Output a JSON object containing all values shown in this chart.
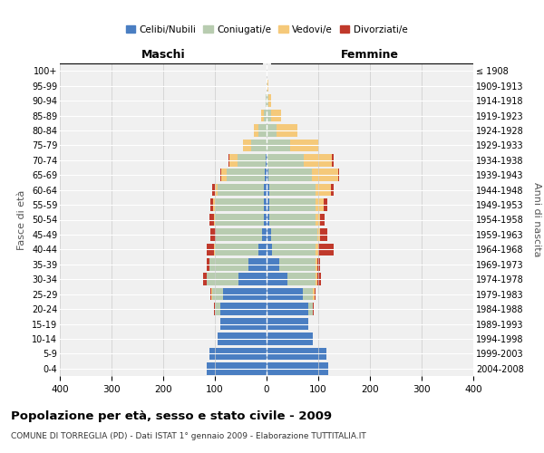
{
  "age_groups": [
    "0-4",
    "5-9",
    "10-14",
    "15-19",
    "20-24",
    "25-29",
    "30-34",
    "35-39",
    "40-44",
    "45-49",
    "50-54",
    "55-59",
    "60-64",
    "65-69",
    "70-74",
    "75-79",
    "80-84",
    "85-89",
    "90-94",
    "95-99",
    "100+"
  ],
  "birth_years": [
    "2004-2008",
    "1999-2003",
    "1994-1998",
    "1989-1993",
    "1984-1988",
    "1979-1983",
    "1974-1978",
    "1969-1973",
    "1964-1968",
    "1959-1963",
    "1954-1958",
    "1949-1953",
    "1944-1948",
    "1939-1943",
    "1934-1938",
    "1929-1933",
    "1924-1928",
    "1919-1923",
    "1914-1918",
    "1909-1913",
    "≤ 1908"
  ],
  "male": {
    "celibi": [
      115,
      110,
      95,
      90,
      90,
      85,
      55,
      35,
      15,
      8,
      5,
      5,
      5,
      3,
      2,
      0,
      0,
      0,
      0,
      0,
      0
    ],
    "coniugati": [
      0,
      0,
      0,
      0,
      10,
      20,
      60,
      75,
      85,
      90,
      95,
      95,
      90,
      75,
      55,
      30,
      15,
      5,
      2,
      0,
      0
    ],
    "vedovi": [
      0,
      0,
      0,
      0,
      0,
      2,
      0,
      0,
      1,
      1,
      2,
      3,
      5,
      10,
      15,
      15,
      10,
      5,
      0,
      0,
      0
    ],
    "divorziati": [
      0,
      0,
      0,
      0,
      2,
      2,
      8,
      5,
      15,
      10,
      8,
      5,
      5,
      2,
      2,
      0,
      0,
      0,
      0,
      0,
      0
    ]
  },
  "female": {
    "nubili": [
      120,
      115,
      90,
      80,
      80,
      70,
      40,
      25,
      10,
      8,
      5,
      5,
      5,
      3,
      2,
      0,
      0,
      0,
      0,
      0,
      0
    ],
    "coniugate": [
      0,
      0,
      0,
      0,
      10,
      20,
      55,
      70,
      85,
      90,
      90,
      90,
      90,
      85,
      70,
      45,
      20,
      8,
      3,
      2,
      0
    ],
    "vedove": [
      0,
      0,
      0,
      0,
      0,
      3,
      3,
      3,
      5,
      5,
      8,
      15,
      30,
      50,
      55,
      55,
      40,
      20,
      5,
      2,
      0
    ],
    "divorziate": [
      0,
      0,
      0,
      0,
      2,
      2,
      8,
      5,
      30,
      15,
      10,
      8,
      5,
      2,
      2,
      0,
      0,
      0,
      0,
      0,
      0
    ]
  },
  "colors": {
    "celibi": "#4A7EC2",
    "coniugati": "#B8CCB0",
    "vedovi": "#F5C97A",
    "divorziati": "#C0392B"
  },
  "xlim": 400,
  "title": "Popolazione per età, sesso e stato civile - 2009",
  "subtitle": "COMUNE DI TORREGLIA (PD) - Dati ISTAT 1° gennaio 2009 - Elaborazione TUTTITALIA.IT",
  "ylabel_left": "Fasce di età",
  "ylabel_right": "Anni di nascita",
  "xlabel_left": "Maschi",
  "xlabel_right": "Femmine",
  "legend_labels": [
    "Celibi/Nubili",
    "Coniugati/e",
    "Vedovi/e",
    "Divorziati/e"
  ],
  "bg_color": "#F0F0F0",
  "grid_color": "#CCCCCC"
}
